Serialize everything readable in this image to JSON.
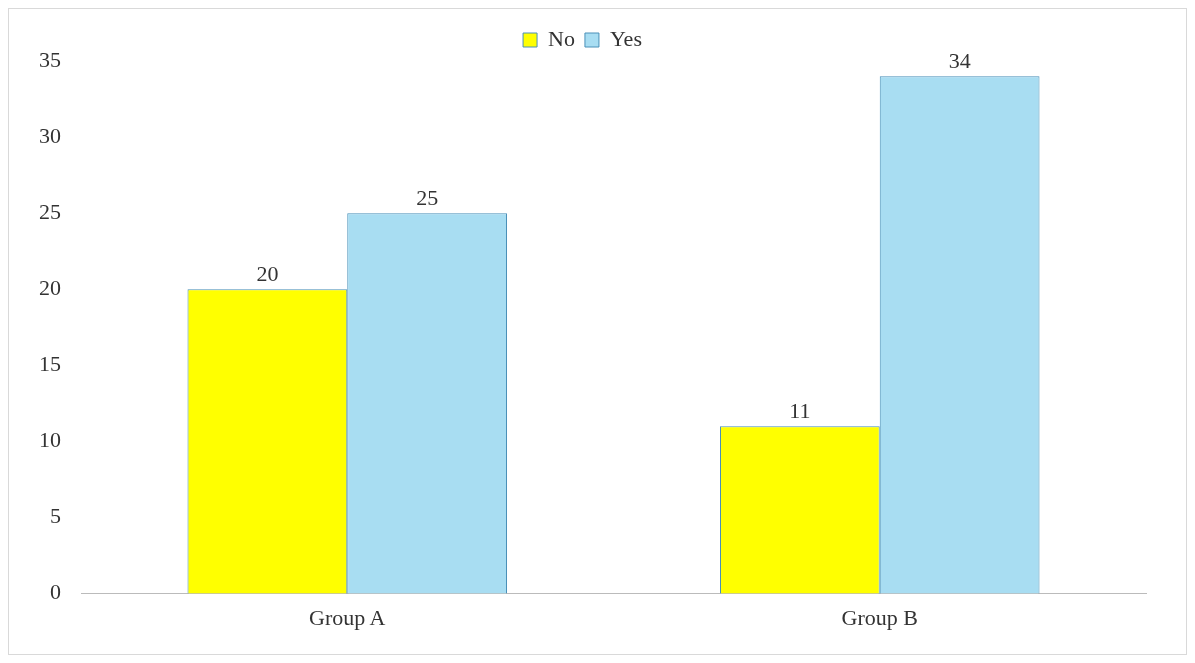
{
  "chart_data": {
    "type": "bar",
    "categories": [
      "Group A",
      "Group B"
    ],
    "series": [
      {
        "name": "No",
        "color": "#ffff00",
        "values": [
          20,
          11
        ]
      },
      {
        "name": "Yes",
        "color": "#a8ddf2",
        "values": [
          25,
          34
        ]
      }
    ],
    "ylim": [
      0,
      35
    ],
    "yticks": [
      0,
      5,
      10,
      15,
      20,
      25,
      30,
      35
    ],
    "grid": false,
    "legend": "top",
    "data_labels": true
  }
}
